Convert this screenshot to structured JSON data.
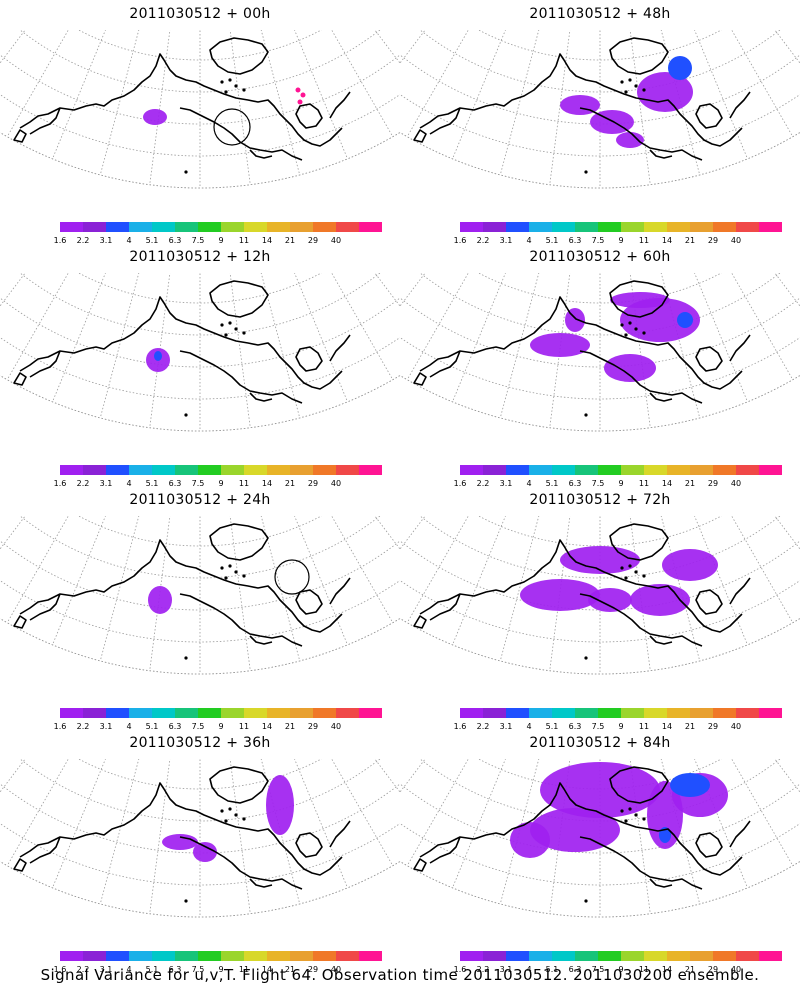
{
  "panels": [
    {
      "title": "2011030512 + 00h",
      "blobs": [
        [
          155,
          117,
          12,
          8
        ]
      ],
      "pink": true,
      "circle": [
        232,
        127,
        18
      ]
    },
    {
      "title": "2011030512 + 48h",
      "blobs": [
        [
          580,
          105,
          20,
          10
        ],
        [
          612,
          122,
          22,
          12
        ],
        [
          630,
          140,
          14,
          8
        ],
        [
          665,
          92,
          28,
          20
        ]
      ],
      "blue": [
        [
          680,
          68,
          12,
          12
        ]
      ]
    },
    {
      "title": "2011030512 + 12h",
      "blobs": [
        [
          158,
          360,
          12,
          12
        ]
      ],
      "blue": [
        [
          158,
          356,
          4,
          5
        ]
      ]
    },
    {
      "title": "2011030512 + 60h",
      "blobs": [
        [
          560,
          345,
          30,
          12
        ],
        [
          575,
          320,
          10,
          12
        ],
        [
          630,
          368,
          26,
          14
        ],
        [
          660,
          320,
          40,
          22
        ],
        [
          640,
          300,
          30,
          8
        ]
      ],
      "blue": [
        [
          685,
          320,
          8,
          8
        ]
      ]
    },
    {
      "title": "2011030512 + 24h",
      "blobs": [
        [
          160,
          600,
          12,
          14
        ]
      ],
      "circle": [
        292,
        577,
        17
      ]
    },
    {
      "title": "2011030512 + 72h",
      "blobs": [
        [
          560,
          595,
          40,
          16
        ],
        [
          610,
          600,
          22,
          12
        ],
        [
          660,
          600,
          30,
          16
        ],
        [
          600,
          560,
          40,
          14
        ],
        [
          690,
          565,
          28,
          16
        ]
      ]
    },
    {
      "title": "2011030512 + 36h",
      "blobs": [
        [
          180,
          842,
          18,
          8
        ],
        [
          205,
          852,
          12,
          10
        ],
        [
          280,
          805,
          14,
          30
        ]
      ]
    },
    {
      "title": "2011030512 + 84h",
      "blobs": [
        [
          575,
          830,
          45,
          22
        ],
        [
          530,
          840,
          20,
          18
        ],
        [
          600,
          790,
          60,
          28
        ],
        [
          665,
          815,
          18,
          34
        ],
        [
          700,
          795,
          28,
          22
        ]
      ],
      "blue": [
        [
          665,
          835,
          6,
          8
        ],
        [
          690,
          785,
          20,
          12
        ]
      ]
    }
  ],
  "colorbar": {
    "colors": [
      "#a020f0",
      "#8a22d6",
      "#2050ff",
      "#1ab0e8",
      "#00c8c8",
      "#17c47a",
      "#22cc22",
      "#9ad52c",
      "#d8d82a",
      "#e8b428",
      "#e8a030",
      "#f07828",
      "#f04848",
      "#ff1493"
    ],
    "labels": [
      "1.6",
      "2.2",
      "3.1",
      "4",
      "5.1",
      "6.3",
      "7.5",
      "9",
      "11",
      "14",
      "21",
      "29",
      "40"
    ]
  },
  "footer": "Signal Variance for u,v,T. Flight 64. Observation time 2011030512. 2011030200 ensemble."
}
